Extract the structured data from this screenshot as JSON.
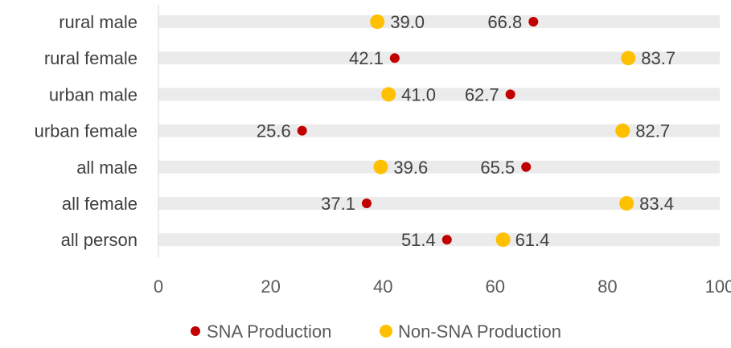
{
  "chart_data": {
    "type": "scatter",
    "categories": [
      "rural male",
      "rural female",
      "urban male",
      "urban female",
      "all male",
      "all female",
      "all person"
    ],
    "series": [
      {
        "name": "SNA Production",
        "color": "#c00000",
        "values": [
          66.8,
          42.1,
          62.7,
          25.6,
          65.5,
          37.1,
          51.4
        ]
      },
      {
        "name": "Non-SNA Production",
        "color": "#ffc000",
        "values": [
          39.0,
          83.7,
          41.0,
          82.7,
          39.6,
          83.4,
          61.4
        ]
      }
    ],
    "xticks": [
      0,
      20,
      40,
      60,
      80,
      100
    ],
    "xlim": [
      0,
      100
    ],
    "title": "",
    "xlabel": "",
    "ylabel": "",
    "legend_position": "bottom",
    "track_color": "#ebebeb"
  }
}
